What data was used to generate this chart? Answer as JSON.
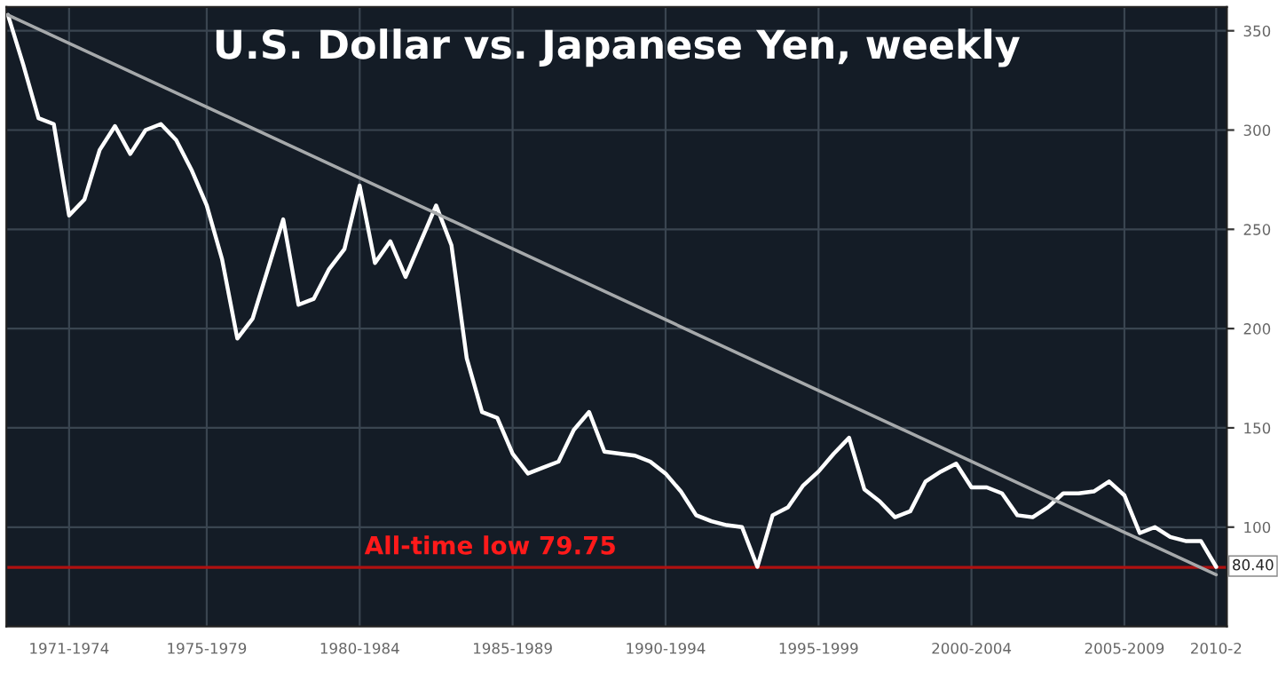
{
  "chart_data": {
    "type": "line",
    "title": "U.S. Dollar vs. Japanese Yen, weekly",
    "categories": [
      null,
      null,
      null,
      null,
      "1971-1974",
      null,
      null,
      null,
      null,
      null,
      null,
      null,
      null,
      "1975-1979",
      null,
      null,
      null,
      null,
      null,
      null,
      null,
      null,
      null,
      "1980-1984",
      null,
      null,
      null,
      null,
      null,
      null,
      null,
      null,
      null,
      "1985-1989",
      null,
      null,
      null,
      null,
      null,
      null,
      null,
      null,
      null,
      "1990-1994",
      null,
      null,
      null,
      null,
      null,
      null,
      null,
      null,
      null,
      "1995-1999",
      null,
      null,
      null,
      null,
      null,
      null,
      null,
      null,
      null,
      "2000-2004",
      null,
      null,
      null,
      null,
      null,
      null,
      null,
      null,
      null,
      "2005-2009",
      null,
      null,
      null,
      null,
      null,
      "2010-2"
    ],
    "series": [
      {
        "color": "#ffffff",
        "values": [
          358,
          333,
          306,
          303,
          257,
          265,
          290,
          302,
          288,
          300,
          303,
          295,
          280,
          262,
          235,
          195,
          205,
          230,
          255,
          212,
          215,
          230,
          240,
          272,
          233,
          244,
          226,
          244,
          262,
          242,
          185,
          158,
          155,
          137,
          127,
          130,
          133,
          149,
          158,
          138,
          137,
          136,
          133,
          127,
          118,
          106,
          103,
          101,
          100,
          80,
          106,
          110,
          121,
          128,
          137,
          145,
          119,
          113,
          105,
          108,
          123,
          128,
          132,
          120,
          120,
          117,
          106,
          105,
          110,
          117,
          117,
          118,
          123,
          116,
          97,
          100,
          95,
          93,
          93,
          80
        ]
      },
      {
        "type": "line",
        "color": "#a6a9ab",
        "values": [
          358,
          null,
          null,
          null,
          null,
          null,
          null,
          null,
          null,
          null,
          null,
          null,
          null,
          null,
          null,
          null,
          null,
          null,
          null,
          null,
          null,
          null,
          null,
          null,
          null,
          null,
          null,
          null,
          null,
          null,
          null,
          null,
          null,
          null,
          null,
          null,
          null,
          null,
          null,
          null,
          null,
          null,
          null,
          null,
          null,
          null,
          null,
          null,
          null,
          null,
          null,
          null,
          null,
          null,
          null,
          null,
          null,
          null,
          null,
          null,
          null,
          null,
          null,
          null,
          null,
          null,
          null,
          null,
          null,
          null,
          null,
          null,
          null,
          null,
          null,
          null,
          null,
          null,
          null,
          76
        ]
      }
    ],
    "ylim": [
      50,
      362
    ],
    "yticks": [
      100,
      150,
      200,
      250,
      300,
      350
    ],
    "grid": true,
    "ref_lines": [
      {
        "axis": "y",
        "value": 79.75,
        "label": "All-time low 79.75",
        "color": "#b01010"
      }
    ],
    "annotations": [
      {
        "text": "80.40",
        "y": 80.4
      }
    ]
  }
}
